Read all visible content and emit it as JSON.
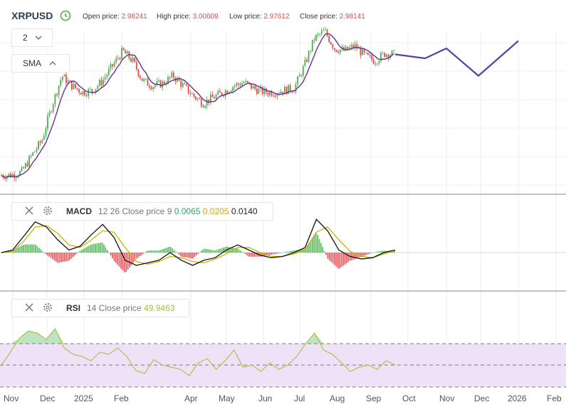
{
  "header": {
    "symbol": "XRPUSD",
    "open_label": "Open price:",
    "open_value": "2.98241",
    "high_label": "High price:",
    "high_value": "3.00609",
    "low_label": "Low price:",
    "low_value": "2.97612",
    "close_label": "Close price:",
    "close_value": "2.98141"
  },
  "controls": {
    "zoom_value": "2",
    "sma_label": "SMA"
  },
  "macd_panel": {
    "name": "MACD",
    "params": "12 26 Close price 9",
    "v1": "0.0065",
    "v2": "0.0205",
    "v3": "0.0140"
  },
  "rsi_panel": {
    "name": "RSI",
    "params": "14 Close price",
    "value": "49.9463"
  },
  "colors": {
    "up": "#4caf50",
    "down": "#e8474a",
    "sma": "#6b2f8e",
    "forecast": "#5b3fa0",
    "macd_signal": "#c8b400",
    "macd_line": "#111111",
    "rsi_line": "#a8c64a",
    "rsi_band": "#efe1f7",
    "value_red": "#e8474a"
  },
  "chart_data": [
    {
      "type": "line",
      "subtype": "candlestick-with-sma-and-forecast",
      "x_labels": [
        "Nov",
        "Dec",
        "2025",
        "Feb",
        "Apr",
        "May",
        "Jun",
        "Jul",
        "Aug",
        "Sep",
        "Oct",
        "Nov",
        "Dec",
        "2026",
        "Feb"
      ],
      "series": [
        {
          "role": "price",
          "points": [
            [
              "Nov",
              0.55
            ],
            [
              "Nov",
              0.56
            ],
            [
              "Nov",
              0.62
            ],
            [
              "Nov",
              0.95
            ],
            [
              "Nov",
              1.25
            ],
            [
              "Dec",
              1.95
            ],
            [
              "Dec",
              2.55
            ],
            [
              "Dec",
              2.35
            ],
            [
              "Dec",
              2.22
            ],
            [
              "2025",
              2.25
            ],
            [
              "2025",
              2.45
            ],
            [
              "2025",
              2.75
            ],
            [
              "Feb",
              3.05
            ],
            [
              "Feb",
              2.85
            ],
            [
              "Feb",
              2.45
            ],
            [
              "Feb",
              2.35
            ],
            [
              "Feb",
              2.4
            ],
            [
              "Feb",
              2.55
            ],
            [
              "Feb",
              2.35
            ],
            [
              "Apr",
              2.15
            ],
            [
              "Apr",
              2.0
            ],
            [
              "Apr",
              2.12
            ],
            [
              "May",
              2.22
            ],
            [
              "May",
              2.35
            ],
            [
              "May",
              2.42
            ],
            [
              "May",
              2.3
            ],
            [
              "Jun",
              2.22
            ],
            [
              "Jun",
              2.22
            ],
            [
              "Jun",
              2.26
            ],
            [
              "Jul",
              2.3
            ],
            [
              "Jul",
              2.75
            ],
            [
              "Jul",
              3.3
            ],
            [
              "Jul",
              3.45
            ],
            [
              "Aug",
              3.1
            ],
            [
              "Aug",
              3.05
            ],
            [
              "Aug",
              3.15
            ],
            [
              "Aug",
              2.95
            ],
            [
              "Sep",
              2.85
            ],
            [
              "Sep",
              3.0
            ],
            [
              "Sep",
              2.98
            ]
          ]
        },
        {
          "role": "sma"
        },
        {
          "role": "forecast",
          "points": [
            [
              "Sep",
              2.98
            ],
            [
              "Oct",
              2.9
            ],
            [
              "Nov",
              3.1
            ],
            [
              "Dec",
              2.55
            ],
            [
              "2026",
              3.25
            ]
          ]
        }
      ]
    },
    {
      "type": "line",
      "subtype": "macd",
      "series": [
        {
          "name": "MACD",
          "values": [
            0.0,
            0.02,
            0.13,
            0.24,
            0.2,
            0.1,
            0.02,
            0.05,
            0.14,
            0.22,
            0.12,
            -0.06,
            -0.1,
            -0.08,
            -0.06,
            0.0,
            -0.06,
            -0.1,
            -0.06,
            -0.04,
            0.02,
            0.06,
            0.02,
            -0.02,
            -0.04,
            -0.03,
            0.0,
            0.04,
            0.26,
            0.17,
            0.02,
            -0.03,
            -0.05,
            -0.04,
            0.0,
            0.02
          ]
        },
        {
          "name": "Signal",
          "values": [
            0.0,
            0.01,
            0.09,
            0.2,
            0.21,
            0.15,
            0.06,
            0.04,
            0.1,
            0.17,
            0.16,
            0.04,
            -0.07,
            -0.09,
            -0.07,
            -0.03,
            -0.04,
            -0.07,
            -0.08,
            -0.05,
            -0.01,
            0.04,
            0.04,
            0.0,
            -0.03,
            -0.03,
            -0.01,
            0.02,
            0.16,
            0.2,
            0.1,
            0.01,
            -0.03,
            -0.04,
            -0.01,
            0.014
          ]
        }
      ]
    },
    {
      "type": "line",
      "subtype": "rsi",
      "series": [
        {
          "name": "RSI",
          "values": [
            50,
            62,
            75,
            82,
            80,
            74,
            84,
            66,
            60,
            58,
            54,
            62,
            60,
            66,
            58,
            45,
            42,
            55,
            50,
            48,
            46,
            40,
            52,
            56,
            46,
            54,
            64,
            48,
            50,
            44,
            52,
            46,
            50,
            58,
            70,
            80,
            64,
            60,
            52,
            44,
            48,
            50,
            46,
            54,
            50
          ]
        }
      ]
    }
  ]
}
